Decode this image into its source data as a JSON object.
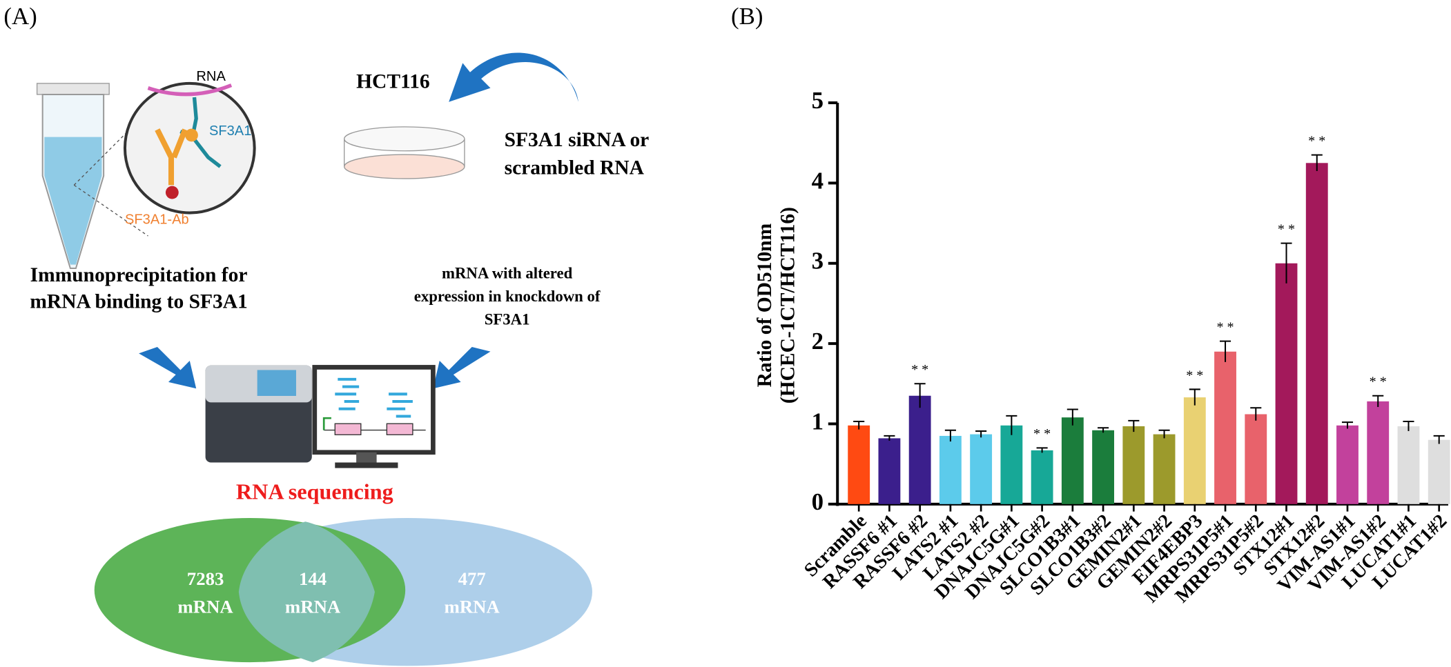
{
  "panel_a": {
    "label": "(A)",
    "rna": "RNA",
    "protein": "SF3A1",
    "antibody": "SF3A1-Ab",
    "cell_line": "HCT116",
    "treatment": [
      "SF3A1 siRNA or",
      "scrambled RNA"
    ],
    "ip_text": [
      "Immunoprecipitation for",
      "mRNA binding to SF3A1"
    ],
    "kd_text": [
      "mRNA with altered",
      "expression in knockdown of",
      "SF3A1"
    ],
    "sequencing": "RNA sequencing",
    "venn": [
      {
        "count": 7283,
        "label": "mRNA"
      },
      {
        "count": 144,
        "label": "mRNA"
      },
      {
        "count": 477,
        "label": "mRNA"
      }
    ]
  },
  "chart_data": {
    "type": "bar",
    "panel_label": "(B)",
    "ylabel": [
      "Ratio of OD510nm",
      "(HCEC-1CT/HCT116)"
    ],
    "categories": [
      "Scramble",
      "RASSF6 #1",
      "RASSF6 #2",
      "LATS2 #1",
      "LATS2 #2",
      "DNAJC5G#1",
      "DNAJC5G#2",
      "SLCO1B3#1",
      "SLCO1B3#2",
      "GEMIN2#1",
      "GEMIN2#2",
      "EIF4EBP3",
      "MRPS31P5#1",
      "MRPS31P5#2",
      "STX12#1",
      "STX12#2",
      "VIM-AS1#1",
      "VIM-AS1#2",
      "LUCAT1#1",
      "LUCAT1#2"
    ],
    "values": [
      0.98,
      0.82,
      1.35,
      0.85,
      0.87,
      0.98,
      0.67,
      1.08,
      0.92,
      0.97,
      0.87,
      1.33,
      1.9,
      1.12,
      3.0,
      4.25,
      0.98,
      1.28,
      0.97,
      0.8
    ],
    "errors": [
      0.05,
      0.03,
      0.15,
      0.07,
      0.04,
      0.12,
      0.03,
      0.1,
      0.03,
      0.07,
      0.05,
      0.1,
      0.13,
      0.08,
      0.25,
      0.1,
      0.04,
      0.07,
      0.06,
      0.05
    ],
    "significance": [
      null,
      null,
      "* *",
      null,
      null,
      null,
      "* *",
      null,
      null,
      null,
      null,
      "* *",
      "* *",
      null,
      "* *",
      "* *",
      null,
      "* *",
      null,
      null
    ],
    "colors": [
      "#ff4a12",
      "#3b1f8c",
      "#3b1f8c",
      "#5ccbeb",
      "#5ccbeb",
      "#17a897",
      "#17a897",
      "#1b7d3c",
      "#1b7d3c",
      "#9c9a2c",
      "#9c9a2c",
      "#e9d172",
      "#e8626b",
      "#e8626b",
      "#a3195b",
      "#a3195b",
      "#c2419c",
      "#c2419c",
      "#dedede",
      "#dedede"
    ],
    "ylim": [
      0,
      5
    ],
    "yticks": [
      0,
      1,
      2,
      3,
      4,
      5
    ]
  }
}
